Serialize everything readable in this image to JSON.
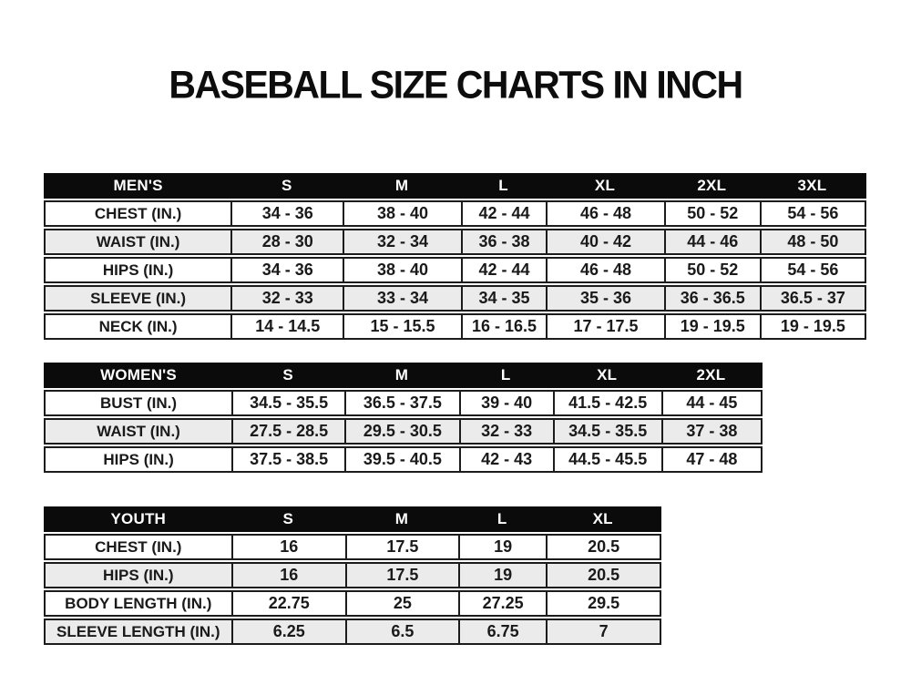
{
  "title": "BASEBALL SIZE CHARTS IN INCH",
  "colors": {
    "header_bg": "#0b0b0b",
    "header_text": "#ffffff",
    "row_alt_bg": "#ebebeb",
    "border": "#1c1c1c",
    "text": "#1a1a1a",
    "page_bg": "#ffffff"
  },
  "tables": [
    {
      "group_label": "MEN'S",
      "sizes": [
        "S",
        "M",
        "L",
        "XL",
        "2XL",
        "3XL"
      ],
      "rows": [
        {
          "label": "CHEST (IN.)",
          "values": [
            "34 - 36",
            "38 - 40",
            "42 - 44",
            "46 - 48",
            "50 - 52",
            "54 - 56"
          ]
        },
        {
          "label": "WAIST (IN.)",
          "values": [
            "28 - 30",
            "32 - 34",
            "36 - 38",
            "40 - 42",
            "44 - 46",
            "48 - 50"
          ]
        },
        {
          "label": "HIPS (IN.)",
          "values": [
            "34 - 36",
            "38 - 40",
            "42 - 44",
            "46 - 48",
            "50 - 52",
            "54 - 56"
          ]
        },
        {
          "label": "SLEEVE (IN.)",
          "values": [
            "32 - 33",
            "33 - 34",
            "34 - 35",
            "35 - 36",
            "36 - 36.5",
            "36.5 - 37"
          ]
        },
        {
          "label": "NECK (IN.)",
          "values": [
            "14 - 14.5",
            "15 - 15.5",
            "16 - 16.5",
            "17 - 17.5",
            "19 - 19.5",
            "19 - 19.5"
          ]
        }
      ]
    },
    {
      "group_label": "WOMEN'S",
      "sizes": [
        "S",
        "M",
        "L",
        "XL",
        "2XL"
      ],
      "rows": [
        {
          "label": "BUST (IN.)",
          "values": [
            "34.5 - 35.5",
            "36.5 - 37.5",
            "39 - 40",
            "41.5 - 42.5",
            "44 - 45"
          ]
        },
        {
          "label": "WAIST (IN.)",
          "values": [
            "27.5 - 28.5",
            "29.5 - 30.5",
            "32 - 33",
            "34.5 - 35.5",
            "37 - 38"
          ]
        },
        {
          "label": "HIPS (IN.)",
          "values": [
            "37.5 - 38.5",
            "39.5 - 40.5",
            "42 - 43",
            "44.5 - 45.5",
            "47 - 48"
          ]
        }
      ]
    },
    {
      "group_label": "YOUTH",
      "sizes": [
        "S",
        "M",
        "L",
        "XL"
      ],
      "rows": [
        {
          "label": "CHEST (IN.)",
          "values": [
            "16",
            "17.5",
            "19",
            "20.5"
          ]
        },
        {
          "label": "HIPS (IN.)",
          "values": [
            "16",
            "17.5",
            "19",
            "20.5"
          ]
        },
        {
          "label": "BODY LENGTH (IN.)",
          "values": [
            "22.75",
            "25",
            "27.25",
            "29.5"
          ]
        },
        {
          "label": "SLEEVE LENGTH (IN.)",
          "values": [
            "6.25",
            "6.5",
            "6.75",
            "7"
          ]
        }
      ]
    }
  ]
}
